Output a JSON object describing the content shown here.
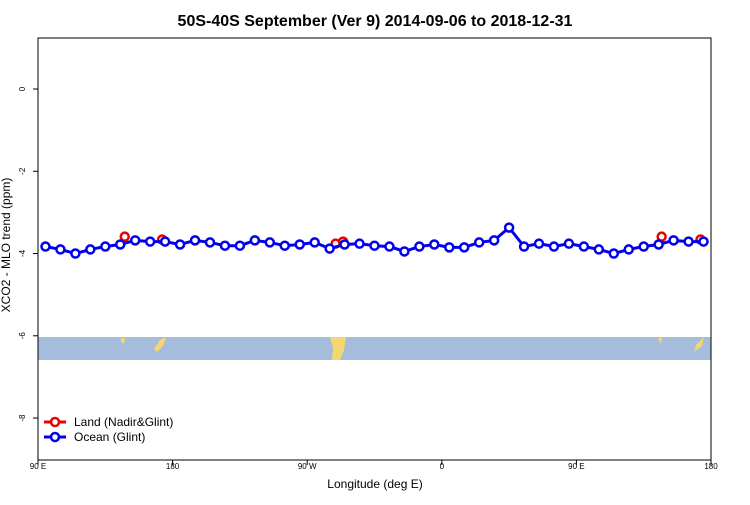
{
  "chart_data": {
    "type": "line",
    "title": "50S-40S September (Ver 9)   2014-09-06 to 2018-12-31",
    "x_label": "Longitude (deg E)",
    "y_label": "XCO2 - MLO trend (ppm)",
    "xlim": [
      90,
      540
    ],
    "ylim": [
      -9.02,
      1.24
    ],
    "xticks": [
      {
        "value": 90,
        "label": "90 E"
      },
      {
        "value": 180,
        "label": "180"
      },
      {
        "value": 270,
        "label": "90 W"
      },
      {
        "value": 360,
        "label": "0"
      },
      {
        "value": 450,
        "label": "90 E"
      },
      {
        "value": 540,
        "label": "180"
      }
    ],
    "yticks": [
      0,
      -2,
      -4,
      -6,
      -8
    ],
    "legend": "bottom-left",
    "series": [
      {
        "name": "Land (Nadir&Glint)",
        "color": "#ee0000",
        "line": false,
        "x": [
          148,
          173,
          289,
          294,
          507,
          533
        ],
        "values": [
          -3.59,
          -3.66,
          -3.76,
          -3.71,
          -3.59,
          -3.66
        ]
      },
      {
        "name": "Ocean (Glint)",
        "color": "#0000ee",
        "line": true,
        "x": [
          95,
          105,
          115,
          125,
          135,
          145,
          155,
          165,
          175,
          185,
          195,
          205,
          215,
          225,
          235,
          245,
          255,
          265,
          275,
          285,
          295,
          305,
          315,
          325,
          335,
          345,
          355,
          365,
          375,
          385,
          395,
          405,
          415,
          425,
          435,
          445,
          455,
          465,
          475,
          485,
          495,
          505,
          515,
          525,
          535
        ],
        "values": [
          -3.83,
          -3.9,
          -4.0,
          -3.9,
          -3.83,
          -3.78,
          -3.68,
          -3.71,
          -3.71,
          -3.78,
          -3.68,
          -3.73,
          -3.81,
          -3.81,
          -3.68,
          -3.73,
          -3.81,
          -3.78,
          -3.73,
          -3.88,
          -3.78,
          -3.76,
          -3.81,
          -3.83,
          -3.95,
          -3.83,
          -3.78,
          -3.85,
          -3.85,
          -3.73,
          -3.68,
          -3.37,
          -3.83,
          -3.76,
          -3.83,
          -3.76,
          -3.83,
          -3.9,
          -4.0,
          -3.9,
          -3.83,
          -3.78,
          -3.68,
          -3.71,
          -3.71
        ]
      }
    ]
  }
}
